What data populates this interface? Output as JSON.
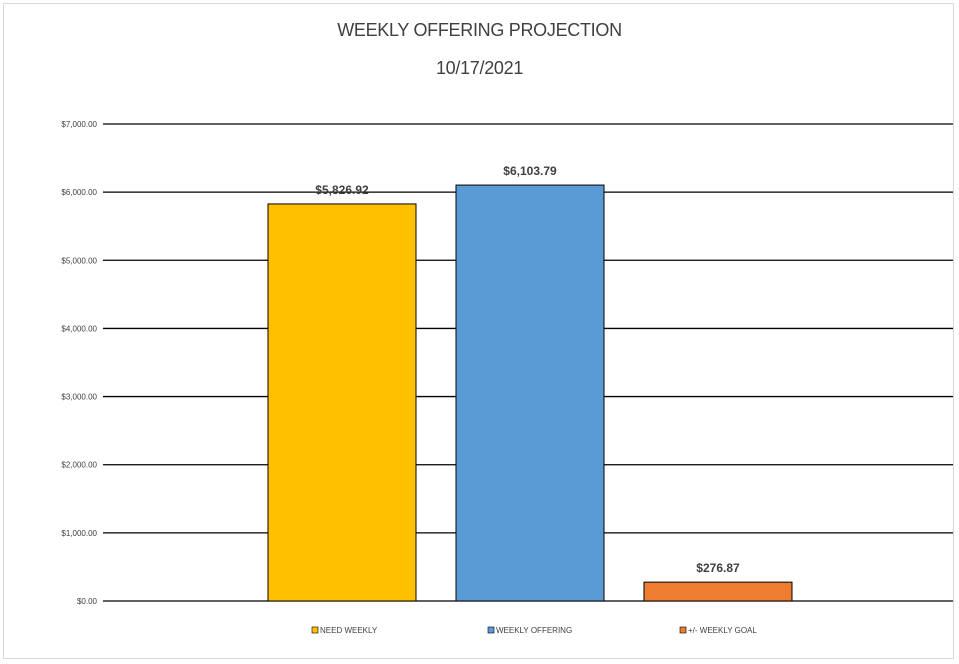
{
  "chart_data": {
    "type": "bar",
    "title": "WEEKLY OFFERING PROJECTION",
    "subtitle": "10/17/2021",
    "categories": [
      "NEED WEEKLY",
      "WEEKLY OFFERING",
      "+/- WEEKLY GOAL"
    ],
    "values": [
      5826.92,
      6103.79,
      276.87
    ],
    "data_labels": [
      "$5,826.92",
      "$6,103.79",
      "$276.87"
    ],
    "colors": [
      "#FFC000",
      "#5B9BD5",
      "#ED7D31"
    ],
    "ylim": [
      0,
      7000
    ],
    "yticks": [
      {
        "value": 0,
        "label": "$0.00"
      },
      {
        "value": 1000,
        "label": "$1,000.00"
      },
      {
        "value": 2000,
        "label": "$2,000.00"
      },
      {
        "value": 3000,
        "label": "$3,000.00"
      },
      {
        "value": 4000,
        "label": "$4,000.00"
      },
      {
        "value": 5000,
        "label": "$5,000.00"
      },
      {
        "value": 6000,
        "label": "$6,000.00"
      },
      {
        "value": 7000,
        "label": "$7,000.00"
      }
    ],
    "grid": true,
    "legend": "bottom"
  }
}
